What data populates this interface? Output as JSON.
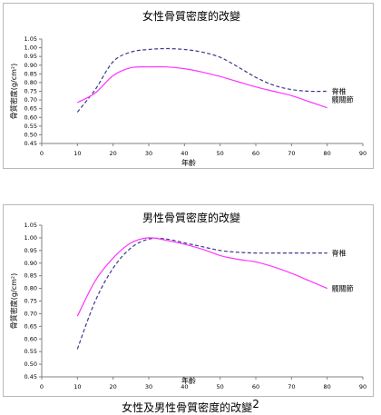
{
  "chart_data": [
    {
      "type": "line",
      "title": "女性骨質密度的改變",
      "xlabel": "年齡",
      "ylabel": "骨質密度(g/cm²)",
      "xlim": [
        0,
        90
      ],
      "ylim": [
        0.45,
        1.05
      ],
      "xticks": [
        0,
        10,
        20,
        30,
        40,
        50,
        60,
        70,
        80,
        90
      ],
      "yticks": [
        "0.45",
        "0.50",
        "0.55",
        "0.60",
        "0.65",
        "0.70",
        "0.75",
        "0.80",
        "0.85",
        "0.90",
        "0.95",
        "1.00",
        "1.05"
      ],
      "grid": false,
      "legend": "inline-right",
      "series": [
        {
          "name": "脊椎",
          "color": "#3b3b8c",
          "dash": true,
          "x": [
            10,
            15,
            20,
            25,
            30,
            35,
            40,
            45,
            50,
            55,
            60,
            65,
            70,
            75,
            80
          ],
          "y": [
            0.63,
            0.76,
            0.92,
            0.975,
            0.99,
            0.995,
            0.99,
            0.975,
            0.945,
            0.89,
            0.83,
            0.785,
            0.76,
            0.75,
            0.75
          ]
        },
        {
          "name": "髖關節",
          "color": "#ff33ff",
          "dash": false,
          "x": [
            10,
            15,
            20,
            25,
            30,
            35,
            40,
            45,
            50,
            55,
            60,
            65,
            70,
            75,
            80
          ],
          "y": [
            0.685,
            0.74,
            0.84,
            0.885,
            0.89,
            0.89,
            0.88,
            0.86,
            0.835,
            0.805,
            0.775,
            0.75,
            0.725,
            0.69,
            0.655
          ]
        }
      ]
    },
    {
      "type": "line",
      "title": "男性骨質密度的改變",
      "xlabel": "年齡",
      "ylabel": "骨質密度(g/cm²)",
      "xlim": [
        0,
        90
      ],
      "ylim": [
        0.45,
        1.05
      ],
      "xticks": [
        0,
        10,
        20,
        30,
        40,
        50,
        60,
        70,
        80,
        90
      ],
      "yticks": [
        "0.45",
        "0.50",
        "0.55",
        "0.60",
        "0.65",
        "0.70",
        "0.75",
        "0.80",
        "0.85",
        "0.90",
        "0.95",
        "1.00",
        "1.05"
      ],
      "grid": false,
      "legend": "inline-right",
      "series": [
        {
          "name": "脊椎",
          "color": "#3b3b8c",
          "dash": true,
          "x": [
            10,
            15,
            20,
            25,
            30,
            35,
            40,
            45,
            50,
            55,
            60,
            65,
            70,
            75,
            80
          ],
          "y": [
            0.56,
            0.75,
            0.88,
            0.96,
            0.995,
            0.995,
            0.98,
            0.965,
            0.95,
            0.943,
            0.94,
            0.94,
            0.94,
            0.94,
            0.94
          ]
        },
        {
          "name": "髖關節",
          "color": "#ff33ff",
          "dash": false,
          "x": [
            10,
            15,
            20,
            25,
            30,
            35,
            40,
            45,
            50,
            55,
            60,
            65,
            70,
            75,
            80
          ],
          "y": [
            0.69,
            0.83,
            0.92,
            0.98,
            1.0,
            0.99,
            0.975,
            0.955,
            0.93,
            0.915,
            0.905,
            0.885,
            0.86,
            0.83,
            0.8
          ]
        }
      ]
    }
  ],
  "caption": {
    "text": "女性及男性骨質密度的改變",
    "footnote": "2"
  }
}
